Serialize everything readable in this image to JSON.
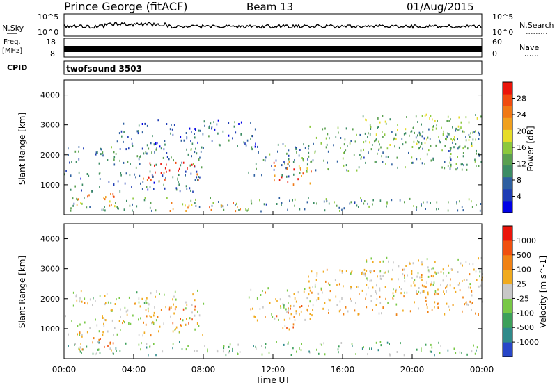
{
  "header": {
    "station": "Prince George (fitACF)",
    "beam": "Beam 13",
    "date": "01/Aug/2015"
  },
  "noise_panel": {
    "left_label": "N.Sky",
    "right_label": "N.Search",
    "ticks_left": [
      "10^5",
      "10^0"
    ],
    "ticks_right": [
      "10^5",
      "10^0"
    ]
  },
  "freq_panel": {
    "label_line1": "Freq.",
    "label_line2": "[MHz]",
    "ticks_left": [
      "18",
      "8"
    ],
    "right_label": "Nave",
    "ticks_right": [
      "60",
      "0"
    ]
  },
  "cpid_panel": {
    "label": "CPID",
    "value": "twofsound 3503"
  },
  "x_axis": {
    "title": "Time UT",
    "ticks": [
      "00:00",
      "04:00",
      "08:00",
      "12:00",
      "16:00",
      "20:00",
      "00:00"
    ]
  },
  "chart_data": [
    {
      "type": "heatmap",
      "title": "Power",
      "xlabel": "Time UT",
      "ylabel": "Slant Range [km]",
      "xlim": [
        0,
        24
      ],
      "ylim": [
        0,
        4500
      ],
      "y_ticks": [
        "1000",
        "2000",
        "3000",
        "4000"
      ],
      "colorbar": {
        "label": "Power [dB]",
        "ticks": [
          "4",
          "8",
          "12",
          "16",
          "20",
          "24",
          "28"
        ],
        "colors": [
          "#0000e6",
          "#1e3cb4",
          "#2e5fa0",
          "#3c8c64",
          "#5aa050",
          "#8cc83c",
          "#e6dc28",
          "#f0a01e",
          "#f07814",
          "#f04b0f",
          "#eb140a"
        ]
      },
      "regions": [
        {
          "t0": 0.2,
          "t1": 8.2,
          "r0": 1600,
          "r1": 2300,
          "level": 0.3
        },
        {
          "t0": 4.4,
          "t1": 7.7,
          "r0": 1150,
          "r1": 1800,
          "level": 0.95
        },
        {
          "t0": 0.0,
          "t1": 8.0,
          "r0": 800,
          "r1": 1500,
          "level": 0.25
        },
        {
          "t0": 0.2,
          "t1": 24.0,
          "r0": 150,
          "r1": 600,
          "level": 0.35
        },
        {
          "t0": 6.0,
          "t1": 10.5,
          "r0": 150,
          "r1": 450,
          "level": 0.7
        },
        {
          "t0": 0.5,
          "t1": 3.0,
          "r0": 300,
          "r1": 800,
          "level": 0.75
        },
        {
          "t0": 12.0,
          "t1": 14.2,
          "r0": 1000,
          "r1": 1800,
          "level": 0.8
        },
        {
          "t0": 10.5,
          "t1": 14.5,
          "r0": 1300,
          "r1": 2400,
          "level": 0.3
        },
        {
          "t0": 14.0,
          "t1": 24.0,
          "r0": 1500,
          "r1": 3000,
          "level": 0.35
        },
        {
          "t0": 17.0,
          "t1": 24.0,
          "r0": 2200,
          "r1": 3400,
          "level": 0.45
        },
        {
          "t0": 3.0,
          "t1": 11.0,
          "r0": 2200,
          "r1": 3200,
          "level": 0.2
        }
      ]
    },
    {
      "type": "heatmap",
      "title": "Velocity",
      "xlabel": "Time UT",
      "ylabel": "Slant Range [km]",
      "xlim": [
        0,
        24
      ],
      "ylim": [
        0,
        4500
      ],
      "y_ticks": [
        "1000",
        "2000",
        "3000",
        "4000"
      ],
      "colorbar": {
        "label": "Velocity [m s^-1]",
        "ticks": [
          "1000",
          "500",
          "100",
          "25",
          "-25",
          "-100",
          "-500",
          "-1000"
        ],
        "colors": [
          "#2846c8",
          "#2f8a8a",
          "#3ca05a",
          "#78c846",
          "#c8c8c8",
          "#f0aa1e",
          "#f08214",
          "#f0500f",
          "#eb140a"
        ]
      },
      "regions": [
        {
          "t0": 0.2,
          "t1": 8.2,
          "r0": 1600,
          "r1": 2300,
          "level": 0.5
        },
        {
          "t0": 4.4,
          "t1": 7.7,
          "r0": 1150,
          "r1": 1800,
          "level": 0.7
        },
        {
          "t0": 0.0,
          "t1": 8.0,
          "r0": 800,
          "r1": 1500,
          "level": 0.5
        },
        {
          "t0": 0.2,
          "t1": 24.0,
          "r0": 150,
          "r1": 600,
          "level": 0.35
        },
        {
          "t0": 0.5,
          "t1": 3.0,
          "r0": 300,
          "r1": 800,
          "level": 0.72
        },
        {
          "t0": 12.0,
          "t1": 14.2,
          "r0": 1000,
          "r1": 1800,
          "level": 0.7
        },
        {
          "t0": 10.5,
          "t1": 14.5,
          "r0": 1300,
          "r1": 2400,
          "level": 0.5
        },
        {
          "t0": 14.0,
          "t1": 24.0,
          "r0": 1500,
          "r1": 3000,
          "level": 0.6
        },
        {
          "t0": 17.0,
          "t1": 24.0,
          "r0": 2200,
          "r1": 3400,
          "level": 0.5
        }
      ]
    }
  ]
}
